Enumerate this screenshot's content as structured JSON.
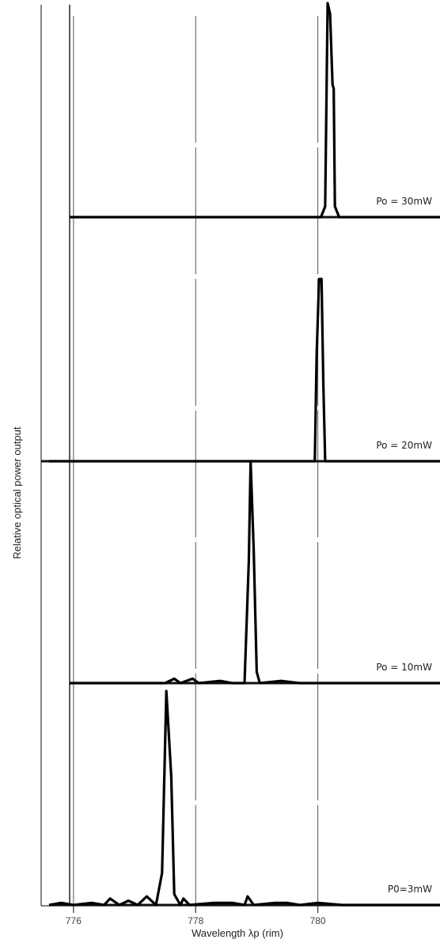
{
  "chart_data": {
    "type": "line",
    "title": "",
    "xlabel": "Wavelength  λp  (rim)",
    "ylabel": "Relative optical power output",
    "xlim": [
      775.6,
      782.0
    ],
    "x_ticks": [
      776,
      778,
      780
    ],
    "x_tick_labels": [
      "776",
      "778",
      "780"
    ],
    "grid": false,
    "panels": [
      {
        "name": "Po = 30mW",
        "label": "Po = 30mW",
        "peak_wavelength": 780.2,
        "points": [
          [
            775.6,
            0
          ],
          [
            776.5,
            0
          ],
          [
            778,
            0
          ],
          [
            780.05,
            0
          ],
          [
            780.12,
            0.05
          ],
          [
            780.16,
            1.0
          ],
          [
            780.2,
            0.95
          ],
          [
            780.24,
            0.62
          ],
          [
            780.26,
            0.6
          ],
          [
            780.28,
            0.05
          ],
          [
            780.35,
            0
          ],
          [
            782,
            0
          ]
        ]
      },
      {
        "name": "Po = 20mW",
        "label": "Po = 20mW",
        "peak_wavelength": 780.05,
        "points": [
          [
            775.6,
            0
          ],
          [
            776.5,
            0
          ],
          [
            778,
            0
          ],
          [
            779.95,
            0
          ],
          [
            779.98,
            0.55
          ],
          [
            780.02,
            0.95
          ],
          [
            780.06,
            0.95
          ],
          [
            780.09,
            0.4
          ],
          [
            780.12,
            0
          ],
          [
            782,
            0
          ]
        ]
      },
      {
        "name": "Po = 10mW",
        "label": "Po = 10mW",
        "peak_wavelength": 778.9,
        "points": [
          [
            775.6,
            0
          ],
          [
            776.5,
            0
          ],
          [
            777.5,
            0
          ],
          [
            777.65,
            0.02
          ],
          [
            777.75,
            0
          ],
          [
            777.95,
            0.02
          ],
          [
            778.05,
            0
          ],
          [
            778.4,
            0.01
          ],
          [
            778.6,
            0
          ],
          [
            778.8,
            0
          ],
          [
            778.87,
            0.55
          ],
          [
            778.9,
            1.0
          ],
          [
            778.95,
            0.6
          ],
          [
            779.0,
            0.05
          ],
          [
            779.05,
            0
          ],
          [
            779.4,
            0.01
          ],
          [
            779.7,
            0
          ],
          [
            781,
            0
          ],
          [
            782,
            0
          ]
        ]
      },
      {
        "name": "P0 = 3mW",
        "label": "P0=3mW",
        "peak_wavelength": 777.55,
        "points": [
          [
            775.6,
            0
          ],
          [
            775.8,
            0.01
          ],
          [
            776.0,
            0
          ],
          [
            776.3,
            0.01
          ],
          [
            776.5,
            0
          ],
          [
            776.6,
            0.03
          ],
          [
            776.75,
            0
          ],
          [
            776.9,
            0.02
          ],
          [
            777.05,
            0
          ],
          [
            777.2,
            0.04
          ],
          [
            777.35,
            0
          ],
          [
            777.45,
            0.15
          ],
          [
            777.52,
            1.0
          ],
          [
            777.6,
            0.6
          ],
          [
            777.65,
            0.05
          ],
          [
            777.75,
            0
          ],
          [
            777.8,
            0.03
          ],
          [
            777.9,
            0
          ],
          [
            778.3,
            0.01
          ],
          [
            778.6,
            0.01
          ],
          [
            778.8,
            0
          ],
          [
            778.85,
            0.04
          ],
          [
            778.95,
            0
          ],
          [
            779.3,
            0.01
          ],
          [
            779.5,
            0.01
          ],
          [
            779.7,
            0
          ],
          [
            780.0,
            0.01
          ],
          [
            780.4,
            0
          ],
          [
            782,
            0
          ]
        ]
      }
    ]
  }
}
